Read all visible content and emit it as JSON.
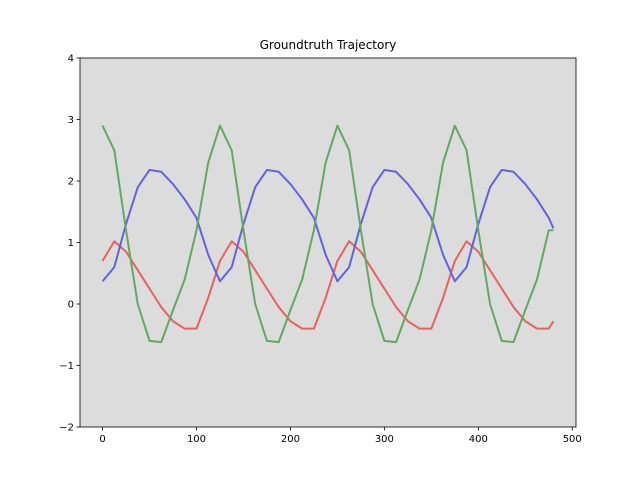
{
  "chart_data": {
    "type": "line",
    "title": "Groundtruth Trajectory",
    "x": [
      0,
      12.5,
      25,
      37.5,
      50,
      62.5,
      75,
      87.5,
      100,
      112.5,
      125,
      137.5,
      150,
      162.5,
      175,
      187.5,
      200,
      212.5,
      225,
      237.5,
      250,
      262.5,
      275,
      287.5,
      300,
      312.5,
      325,
      337.5,
      350,
      362.5,
      375,
      387.5,
      400,
      412.5,
      425,
      437.5,
      450,
      462.5,
      475,
      480
    ],
    "series": [
      {
        "color": "#e8625f",
        "values": [
          0.7,
          1.02,
          0.85,
          0.55,
          0.25,
          -0.05,
          -0.28,
          -0.4,
          -0.4,
          0.1,
          0.7,
          1.02,
          0.85,
          0.55,
          0.25,
          -0.05,
          -0.28,
          -0.4,
          -0.4,
          0.1,
          0.7,
          1.02,
          0.85,
          0.55,
          0.25,
          -0.05,
          -0.28,
          -0.4,
          -0.4,
          0.1,
          0.7,
          1.02,
          0.85,
          0.55,
          0.25,
          -0.05,
          -0.28,
          -0.4,
          -0.4,
          -0.28
        ]
      },
      {
        "color": "#6262e0",
        "values": [
          0.37,
          0.6,
          1.3,
          1.9,
          2.18,
          2.15,
          1.95,
          1.7,
          1.4,
          0.8,
          0.37,
          0.6,
          1.3,
          1.9,
          2.18,
          2.15,
          1.95,
          1.7,
          1.4,
          0.8,
          0.37,
          0.6,
          1.3,
          1.9,
          2.18,
          2.15,
          1.95,
          1.7,
          1.4,
          0.8,
          0.37,
          0.6,
          1.3,
          1.9,
          2.18,
          2.15,
          1.95,
          1.7,
          1.4,
          1.23
        ]
      },
      {
        "color": "#62a862",
        "values": [
          2.9,
          2.5,
          1.2,
          0.0,
          -0.6,
          -0.62,
          -0.1,
          0.4,
          1.2,
          2.3,
          2.9,
          2.5,
          1.2,
          0.0,
          -0.6,
          -0.62,
          -0.1,
          0.4,
          1.2,
          2.3,
          2.9,
          2.5,
          1.2,
          0.0,
          -0.6,
          -0.62,
          -0.1,
          0.4,
          1.2,
          2.3,
          2.9,
          2.5,
          1.2,
          0.0,
          -0.6,
          -0.62,
          -0.1,
          0.4,
          1.2,
          1.2
        ]
      }
    ],
    "xlim": [
      -24,
      504
    ],
    "ylim": [
      -2,
      4
    ],
    "xticks": [
      0,
      100,
      200,
      300,
      400,
      500
    ],
    "yticks": [
      {
        "value": -2,
        "label": "−2"
      },
      {
        "value": -1,
        "label": "−1"
      },
      0,
      1,
      2,
      3,
      4
    ],
    "background": "#dcdcdc"
  }
}
